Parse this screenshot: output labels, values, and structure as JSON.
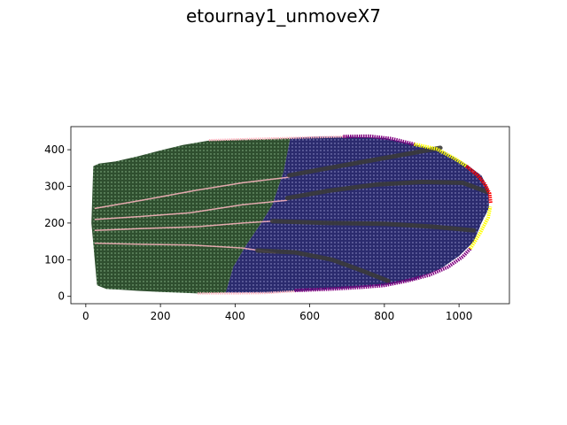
{
  "chart_data": {
    "type": "scatter",
    "title": "etournay1_unmoveX7",
    "xlabel": "",
    "ylabel": "",
    "xlim": [
      -40,
      1135
    ],
    "ylim": [
      -20,
      463
    ],
    "xticks": [
      0,
      200,
      400,
      600,
      800,
      1000
    ],
    "yticks": [
      0,
      100,
      200,
      300,
      400
    ],
    "grid": false,
    "legend": "none",
    "colors": {
      "green_region": "#2f4f2f",
      "blue_region": "#2b2b6e",
      "pink": "#ffb6c1",
      "gray": "#3a3a3a",
      "purple": "#800080",
      "yellow": "#ffff00",
      "red": "#ff0000"
    },
    "regions": [
      {
        "color_key": "green_region",
        "outline": [
          [
            20,
            355
          ],
          [
            35,
            362
          ],
          [
            80,
            368
          ],
          [
            140,
            382
          ],
          [
            200,
            398
          ],
          [
            260,
            413
          ],
          [
            330,
            425
          ],
          [
            420,
            428
          ],
          [
            500,
            430
          ],
          [
            548,
            432
          ],
          [
            540,
            390
          ],
          [
            530,
            340
          ],
          [
            500,
            250
          ],
          [
            470,
            200
          ],
          [
            430,
            140
          ],
          [
            395,
            80
          ],
          [
            375,
            10
          ],
          [
            300,
            8
          ],
          [
            200,
            12
          ],
          [
            140,
            15
          ],
          [
            95,
            18
          ],
          [
            55,
            20
          ],
          [
            30,
            30
          ],
          [
            15,
            200
          ]
        ]
      },
      {
        "color_key": "blue_region",
        "outline": [
          [
            548,
            432
          ],
          [
            620,
            436
          ],
          [
            700,
            436
          ],
          [
            800,
            432
          ],
          [
            880,
            415
          ],
          [
            960,
            395
          ],
          [
            1020,
            360
          ],
          [
            1060,
            330
          ],
          [
            1080,
            290
          ],
          [
            1080,
            240
          ],
          [
            1060,
            200
          ],
          [
            1040,
            150
          ],
          [
            1000,
            110
          ],
          [
            950,
            75
          ],
          [
            880,
            45
          ],
          [
            800,
            30
          ],
          [
            700,
            22
          ],
          [
            600,
            16
          ],
          [
            500,
            10
          ],
          [
            375,
            10
          ],
          [
            395,
            80
          ],
          [
            430,
            140
          ],
          [
            470,
            200
          ],
          [
            500,
            250
          ],
          [
            530,
            340
          ],
          [
            540,
            390
          ]
        ]
      }
    ],
    "veins": [
      {
        "color_key": "pink",
        "points": [
          [
            25,
            145
          ],
          [
            150,
            142
          ],
          [
            280,
            140
          ],
          [
            420,
            132
          ],
          [
            510,
            118
          ]
        ]
      },
      {
        "color_key": "pink",
        "points": [
          [
            25,
            180
          ],
          [
            150,
            185
          ],
          [
            300,
            190
          ],
          [
            420,
            200
          ],
          [
            500,
            205
          ]
        ]
      },
      {
        "color_key": "pink",
        "points": [
          [
            25,
            210
          ],
          [
            150,
            218
          ],
          [
            280,
            228
          ],
          [
            420,
            250
          ],
          [
            540,
            262
          ]
        ]
      },
      {
        "color_key": "pink",
        "points": [
          [
            25,
            240
          ],
          [
            150,
            262
          ],
          [
            300,
            290
          ],
          [
            420,
            310
          ],
          [
            545,
            325
          ]
        ]
      },
      {
        "color_key": "gray",
        "points": [
          [
            460,
            125
          ],
          [
            560,
            120
          ],
          [
            660,
            100
          ],
          [
            740,
            70
          ],
          [
            810,
            42
          ]
        ]
      },
      {
        "color_key": "gray",
        "points": [
          [
            500,
            205
          ],
          [
            650,
            200
          ],
          [
            800,
            198
          ],
          [
            930,
            190
          ],
          [
            1040,
            180
          ]
        ]
      },
      {
        "color_key": "gray",
        "points": [
          [
            540,
            268
          ],
          [
            650,
            288
          ],
          [
            780,
            305
          ],
          [
            900,
            312
          ],
          [
            1010,
            310
          ],
          [
            1075,
            285
          ]
        ]
      },
      {
        "color_key": "gray",
        "points": [
          [
            545,
            330
          ],
          [
            650,
            350
          ],
          [
            760,
            370
          ],
          [
            870,
            390
          ],
          [
            950,
            405
          ]
        ]
      }
    ],
    "boundary": [
      {
        "color_key": "pink",
        "points": [
          [
            330,
            426
          ],
          [
            430,
            429
          ],
          [
            548,
            432
          ],
          [
            700,
            436
          ]
        ]
      },
      {
        "color_key": "pink",
        "points": [
          [
            300,
            8
          ],
          [
            400,
            8
          ],
          [
            480,
            9
          ],
          [
            560,
            14
          ]
        ]
      },
      {
        "color_key": "purple",
        "points": [
          [
            690,
            436
          ],
          [
            760,
            437
          ],
          [
            820,
            430
          ],
          [
            880,
            415
          ]
        ]
      },
      {
        "color_key": "purple",
        "points": [
          [
            560,
            16
          ],
          [
            660,
            20
          ],
          [
            740,
            25
          ],
          [
            800,
            30
          ],
          [
            860,
            42
          ],
          [
            920,
            58
          ],
          [
            970,
            80
          ],
          [
            1010,
            108
          ],
          [
            1030,
            130
          ]
        ]
      },
      {
        "color_key": "yellow",
        "points": [
          [
            880,
            415
          ],
          [
            940,
            402
          ],
          [
            990,
            375
          ],
          [
            1020,
            355
          ]
        ]
      },
      {
        "color_key": "yellow",
        "points": [
          [
            1030,
            130
          ],
          [
            1055,
            170
          ],
          [
            1078,
            215
          ],
          [
            1084,
            245
          ]
        ]
      },
      {
        "color_key": "red",
        "points": [
          [
            1020,
            355
          ],
          [
            1050,
            330
          ],
          [
            1070,
            305
          ],
          [
            1082,
            280
          ],
          [
            1085,
            255
          ]
        ]
      }
    ]
  }
}
